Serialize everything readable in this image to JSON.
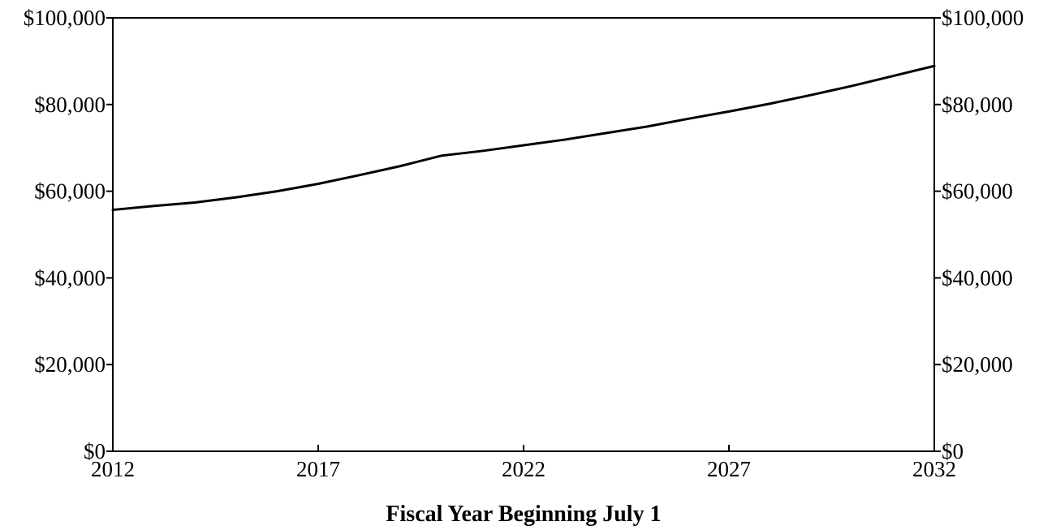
{
  "chart_data": {
    "type": "line",
    "xlabel": "Fiscal Year Beginning July 1",
    "ylabel": "",
    "xlim": [
      2012,
      2032
    ],
    "ylim": [
      0,
      100000
    ],
    "x_ticks": [
      "2012",
      "2017",
      "2022",
      "2027",
      "2032"
    ],
    "y_ticks_left": [
      "$0",
      "$20,000",
      "$40,000",
      "$60,000",
      "$80,000",
      "$100,000"
    ],
    "y_ticks_right": [
      "$0",
      "$20,000",
      "$40,000",
      "$60,000",
      "$80,000",
      "$100,000"
    ],
    "grid": false,
    "legend": "none",
    "line_color": "#000000",
    "series": [
      {
        "x": [
          2012,
          2013,
          2014,
          2015,
          2016,
          2017,
          2018,
          2019,
          2020,
          2021,
          2022,
          2023,
          2024,
          2025,
          2026,
          2027,
          2028,
          2029,
          2030,
          2031,
          2032
        ],
        "values": [
          55700,
          56600,
          57400,
          58600,
          60000,
          61700,
          63700,
          65800,
          68200,
          69300,
          70600,
          71900,
          73400,
          74900,
          76700,
          78400,
          80200,
          82200,
          84300,
          86600,
          88900
        ]
      }
    ]
  }
}
